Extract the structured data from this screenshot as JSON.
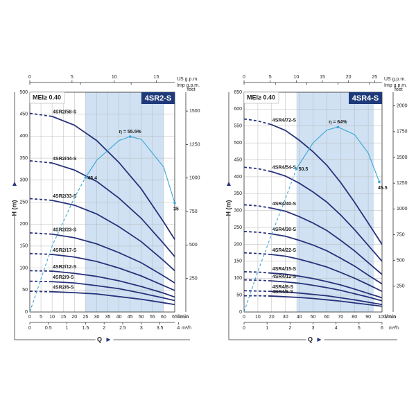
{
  "chart_data": [
    {
      "type": "line",
      "title": "4SR2-S",
      "annotation": "MEI≥ 0.40",
      "ylabel": "H (m)",
      "xlabel": "Q",
      "x_unit": "l/min",
      "xlim": [
        0,
        65
      ],
      "xticks": [
        0,
        5,
        10,
        15,
        20,
        25,
        30,
        35,
        40,
        45,
        50,
        55,
        60,
        65
      ],
      "ylim": [
        0,
        500
      ],
      "yticks": [
        0,
        50,
        100,
        150,
        200,
        250,
        300,
        350,
        400,
        450,
        500
      ],
      "grid": true,
      "solid_from": 10,
      "recommended_range": [
        25,
        60
      ],
      "x": [
        0,
        10,
        20,
        30,
        40,
        50,
        60,
        65
      ],
      "series": [
        {
          "name": "4SR2/58-S",
          "color": "#27327a",
          "values": [
            452,
            445,
            425,
            390,
            340,
            280,
            205,
            165
          ]
        },
        {
          "name": "4SR2/44-S",
          "color": "#27327a",
          "values": [
            344,
            339,
            323,
            297,
            259,
            213,
            156,
            126
          ]
        },
        {
          "name": "4SR2/33-S",
          "color": "#27327a",
          "values": [
            258,
            254,
            243,
            223,
            194,
            160,
            117,
            94
          ]
        },
        {
          "name": "4SR2/23-S",
          "color": "#27327a",
          "values": [
            180,
            177,
            169,
            155,
            135,
            112,
            82,
            66
          ]
        },
        {
          "name": "4SR2/17-S",
          "color": "#27327a",
          "values": [
            133,
            131,
            125,
            115,
            100,
            82,
            60,
            49
          ]
        },
        {
          "name": "4SR2/12-S",
          "color": "#27327a",
          "values": [
            94,
            93,
            88,
            81,
            71,
            58,
            43,
            34
          ]
        },
        {
          "name": "4SR2/9-S",
          "color": "#27327a",
          "values": [
            70,
            69,
            66,
            60,
            53,
            43,
            32,
            26
          ]
        },
        {
          "name": "4SR2/6-S",
          "color": "#27327a",
          "values": [
            47,
            46,
            44,
            41,
            35,
            29,
            21,
            17
          ]
        }
      ],
      "efficiency": {
        "name": "η",
        "color": "#3aa6d8",
        "x": [
          0,
          10,
          20,
          25,
          30,
          40,
          45,
          50,
          60,
          65
        ],
        "values": [
          0,
          150,
          260,
          306,
          345,
          390,
          399,
          393,
          330,
          248
        ],
        "points": {
          "x": [
            25,
            45,
            65
          ],
          "values": [
            43.4,
            55.5,
            35
          ],
          "value_labels": [
            "43.4",
            "η = 55.5%",
            "35"
          ]
        }
      },
      "secondary_axes": [
        {
          "position": "top",
          "label": "US g.p.m.",
          "lim": [
            0,
            17.17
          ],
          "ticks": [
            0,
            5,
            10,
            15
          ],
          "tick_labels": true
        },
        {
          "position": "top",
          "label": "Imp g.p.m.",
          "lim": [
            0,
            14.3
          ],
          "ticks": [
            0,
            5,
            10
          ],
          "tick_labels": false
        },
        {
          "position": "right",
          "label": "feet",
          "lim": [
            0,
            1640.4
          ],
          "ticks": [
            250,
            500,
            750,
            1000,
            1250,
            1500
          ],
          "tick_labels": true
        },
        {
          "position": "bottom",
          "label": "m³/h",
          "lim": [
            0,
            3.9
          ],
          "ticks": [
            0,
            0.5,
            1,
            1.5,
            2,
            2.5,
            3,
            3.5,
            4
          ],
          "tick_labels": true
        }
      ]
    },
    {
      "type": "line",
      "title": "4SR4-S",
      "annotation": "MEI≥ 0.40",
      "ylabel": "H (m)",
      "xlabel": "Q",
      "x_unit": "l/min",
      "xlim": [
        0,
        100
      ],
      "xticks": [
        0,
        10,
        20,
        30,
        40,
        50,
        60,
        70,
        80,
        90,
        100
      ],
      "ylim": [
        0,
        650
      ],
      "yticks": [
        0,
        50,
        100,
        150,
        200,
        250,
        300,
        350,
        400,
        450,
        500,
        550,
        600,
        650
      ],
      "grid": true,
      "solid_from": 20,
      "recommended_range": [
        38,
        94
      ],
      "x": [
        0,
        10,
        20,
        30,
        40,
        50,
        60,
        70,
        80,
        90,
        100
      ],
      "series": [
        {
          "name": "4SR4/72-S",
          "color": "#27327a",
          "values": [
            571,
            565,
            554,
            537,
            508,
            474,
            434,
            383,
            325,
            263,
            200
          ]
        },
        {
          "name": "4SR4/54-S",
          "color": "#27327a",
          "values": [
            428,
            424,
            415,
            402,
            381,
            355,
            325,
            287,
            244,
            197,
            150
          ]
        },
        {
          "name": "4SR4/40-S",
          "color": "#27327a",
          "values": [
            317,
            314,
            307,
            298,
            282,
            263,
            241,
            212,
            181,
            146,
            111
          ]
        },
        {
          "name": "4SR4/30-S",
          "color": "#27327a",
          "values": [
            238,
            236,
            231,
            224,
            212,
            198,
            181,
            159,
            136,
            109,
            83
          ]
        },
        {
          "name": "4SR4/22-S",
          "color": "#27327a",
          "values": [
            175,
            173,
            170,
            165,
            156,
            145,
            133,
            117,
            100,
            81,
            61
          ]
        },
        {
          "name": "4SR4/15-S",
          "color": "#27327a",
          "values": [
            119,
            118,
            115,
            112,
            106,
            99,
            90,
            80,
            68,
            55,
            42
          ]
        },
        {
          "name": "4SR4/12-S",
          "color": "#27327a",
          "values": [
            95,
            94,
            92,
            89,
            85,
            79,
            72,
            64,
            54,
            44,
            33
          ]
        },
        {
          "name": "4SR4/8-S",
          "color": "#27327a",
          "values": [
            63,
            62,
            61,
            59,
            56,
            52,
            48,
            42,
            36,
            29,
            22
          ]
        },
        {
          "name": "4SR4/6-S",
          "color": "#27327a",
          "values": [
            48,
            48,
            47,
            45,
            43,
            40,
            36,
            32,
            27,
            22,
            17
          ]
        }
      ],
      "efficiency": {
        "name": "η",
        "color": "#3aa6d8",
        "x": [
          0,
          10,
          20,
          30,
          38,
          50,
          60,
          68,
          80,
          90,
          98
        ],
        "values": [
          0,
          120,
          230,
          335,
          424,
          500,
          538,
          547,
          525,
          470,
          385
        ],
        "points": {
          "x": [
            38,
            68,
            98
          ],
          "values": [
            50.5,
            64,
            45.5
          ],
          "value_labels": [
            "50.5",
            "η = 64%",
            "45.5"
          ]
        }
      },
      "secondary_axes": [
        {
          "position": "top",
          "label": "US g.p.m.",
          "lim": [
            0,
            26.42
          ],
          "ticks": [
            0,
            5,
            10,
            15,
            20,
            25
          ],
          "tick_labels": true
        },
        {
          "position": "top",
          "label": "Imp g.p.m.",
          "lim": [
            0,
            22
          ],
          "ticks": [
            0,
            5,
            10,
            15,
            20
          ],
          "tick_labels": false
        },
        {
          "position": "right",
          "label": "feet",
          "lim": [
            0,
            2132.5
          ],
          "ticks": [
            250,
            500,
            750,
            1000,
            1250,
            1500,
            1750,
            2000
          ],
          "tick_labels": true
        },
        {
          "position": "bottom",
          "label": "m³/h",
          "lim": [
            0,
            6
          ],
          "ticks": [
            0,
            1,
            2,
            3,
            4,
            5,
            6
          ],
          "tick_labels": true
        }
      ]
    }
  ]
}
